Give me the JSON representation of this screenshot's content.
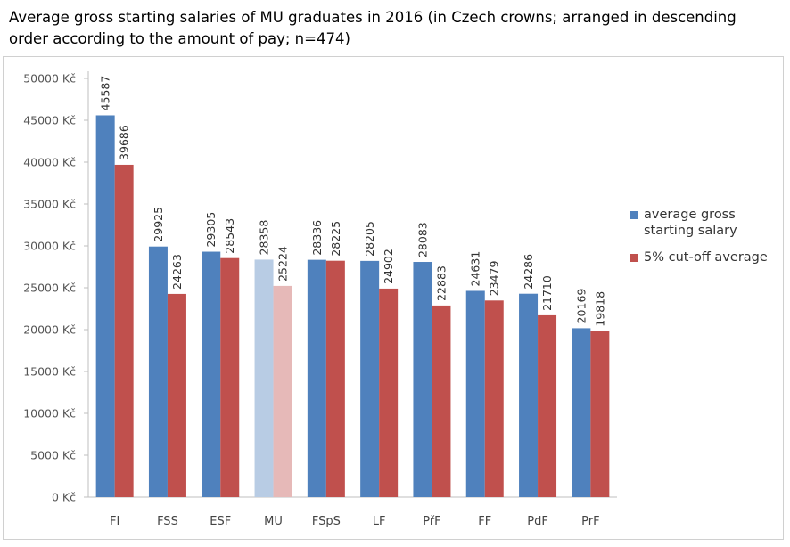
{
  "title": "Average gross starting salaries of MU graduates in 2016 (in Czech crowns; arranged in descending order according to the amount of pay; n=474)",
  "colors": {
    "series_0": "#4f81bd",
    "series_1": "#c0504d",
    "series_0_highlight": "#b8cce4",
    "series_1_highlight": "#e6b9b8",
    "axis": "#bfbfbf"
  },
  "highlight_category": "MU",
  "chart_data": {
    "type": "bar",
    "title": "",
    "xlabel": "",
    "ylabel": "",
    "ylim": [
      0,
      50000
    ],
    "yticks": [
      "0 Kč",
      "5000 Kč",
      "10000 Kč",
      "15000 Kč",
      "20000 Kč",
      "25000 Kč",
      "30000 Kč",
      "35000 Kč",
      "40000 Kč",
      "45000 Kč",
      "50000 Kč"
    ],
    "grid": false,
    "legend_position": "right",
    "categories": [
      "FI",
      "FSS",
      "ESF",
      "MU",
      "FSpS",
      "LF",
      "PřF",
      "FF",
      "PdF",
      "PrF"
    ],
    "series": [
      {
        "name": "average gross starting salary",
        "values": [
          45587,
          29925,
          29305,
          28358,
          28336,
          28205,
          28083,
          24631,
          24286,
          20169
        ]
      },
      {
        "name": "5% cut-off average",
        "values": [
          39686,
          24263,
          28543,
          25224,
          28225,
          24902,
          22883,
          23479,
          21710,
          19818
        ]
      }
    ],
    "data_labels": [
      [
        "45587",
        "29925",
        "29305",
        "28358",
        "28336",
        "28205",
        "28083",
        "24631",
        "24286",
        "20169"
      ],
      [
        "39686",
        "24263",
        "28543",
        "25224",
        "28225",
        "24902",
        "22883",
        "23479",
        "21710",
        "19818"
      ]
    ]
  }
}
